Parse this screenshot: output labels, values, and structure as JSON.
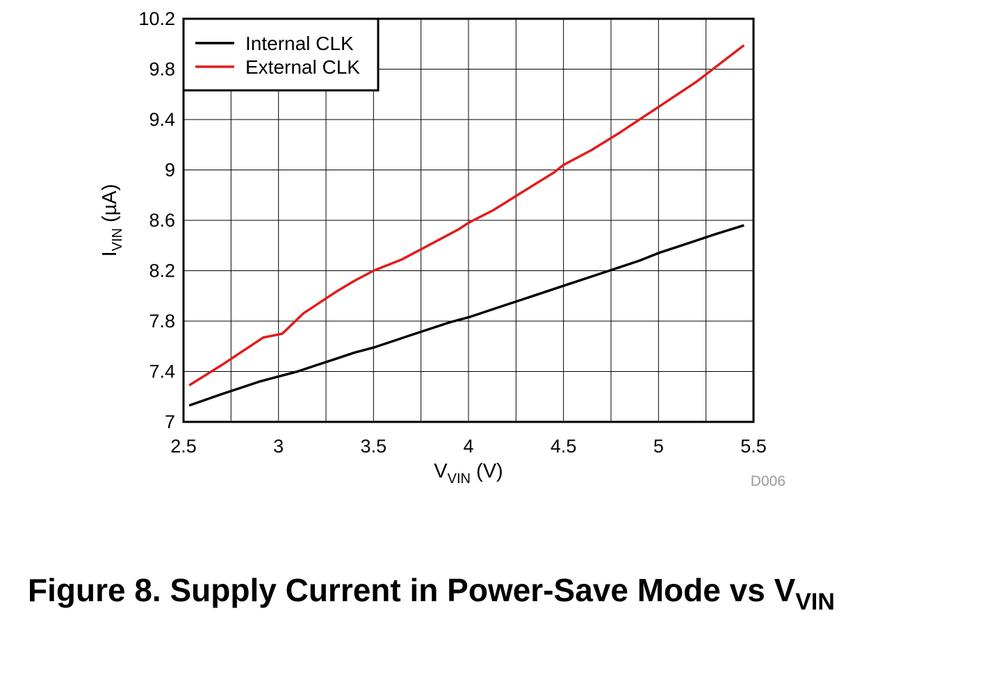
{
  "chart_data": {
    "type": "line",
    "xlabel": {
      "main": "V",
      "sub": "VIN",
      "unit": " (V)"
    },
    "ylabel": {
      "main": "I",
      "sub": "VIN",
      "unit": " (µA)"
    },
    "xlim": [
      2.5,
      5.5
    ],
    "ylim": [
      7,
      10.2
    ],
    "x_ticks": [
      "2.5",
      "3",
      "3.5",
      "4",
      "4.5",
      "5",
      "5.5"
    ],
    "y_ticks": [
      "7",
      "7.4",
      "7.8",
      "8.2",
      "8.6",
      "9",
      "9.4",
      "9.8",
      "10.2"
    ],
    "grid": true,
    "legend_position": "top-left",
    "figure_id": "D006",
    "series": [
      {
        "name": "Internal CLK",
        "color": "#000000",
        "x": [
          2.53,
          2.7,
          2.8,
          2.9,
          3.0,
          3.1,
          3.2,
          3.3,
          3.4,
          3.5,
          3.6,
          3.7,
          3.8,
          3.9,
          4.0,
          4.1,
          4.2,
          4.3,
          4.4,
          4.5,
          4.6,
          4.7,
          4.8,
          4.9,
          5.0,
          5.1,
          5.2,
          5.3,
          5.45
        ],
        "y": [
          7.13,
          7.22,
          7.27,
          7.32,
          7.36,
          7.4,
          7.45,
          7.5,
          7.55,
          7.59,
          7.64,
          7.69,
          7.74,
          7.79,
          7.83,
          7.88,
          7.93,
          7.98,
          8.03,
          8.08,
          8.13,
          8.18,
          8.23,
          8.28,
          8.34,
          8.39,
          8.44,
          8.49,
          8.56
        ]
      },
      {
        "name": "External CLK",
        "color": "#e31b1b",
        "x": [
          2.53,
          2.7,
          2.8,
          2.92,
          3.02,
          3.13,
          3.2,
          3.3,
          3.4,
          3.5,
          3.65,
          3.75,
          3.85,
          3.95,
          4.0,
          4.13,
          4.3,
          4.45,
          4.5,
          4.65,
          4.8,
          5.0,
          5.2,
          5.45
        ],
        "y": [
          7.29,
          7.45,
          7.55,
          7.67,
          7.7,
          7.86,
          7.93,
          8.03,
          8.12,
          8.2,
          8.29,
          8.37,
          8.45,
          8.53,
          8.58,
          8.68,
          8.84,
          8.98,
          9.04,
          9.16,
          9.3,
          9.5,
          9.7,
          9.99
        ]
      }
    ]
  },
  "caption": {
    "text": "Figure 8. Supply Current in Power-Save Mode vs V",
    "subscript": "VIN"
  }
}
